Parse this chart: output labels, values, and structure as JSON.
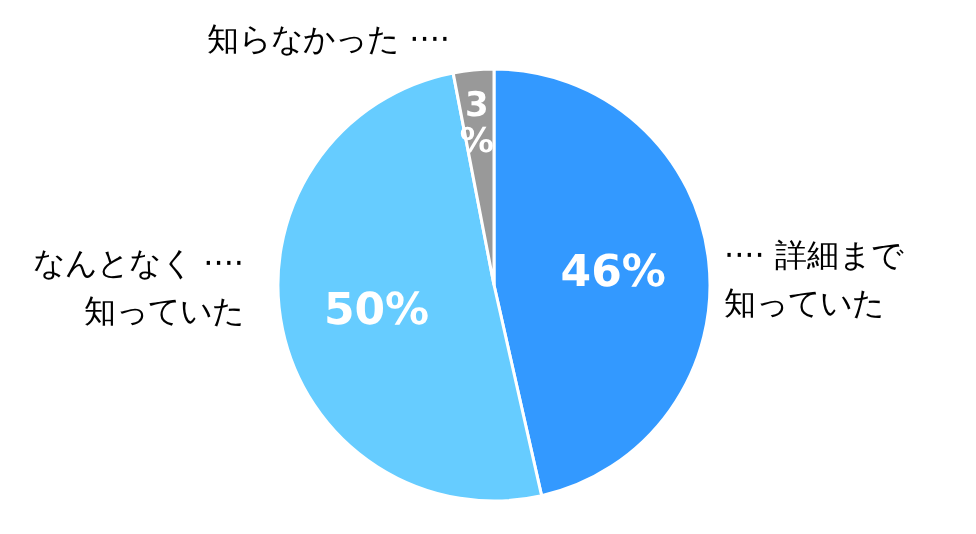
{
  "chart_data": {
    "type": "pie",
    "categories": [
      "···· 詳細まで知っていた",
      "なんとなく ····知っていた",
      "知らなかった ····"
    ],
    "values": [
      46,
      50,
      3
    ],
    "colors": [
      "#3399ff",
      "#66ccff",
      "#999999"
    ],
    "value_labels": [
      "46%",
      "50%",
      "3%"
    ]
  }
}
